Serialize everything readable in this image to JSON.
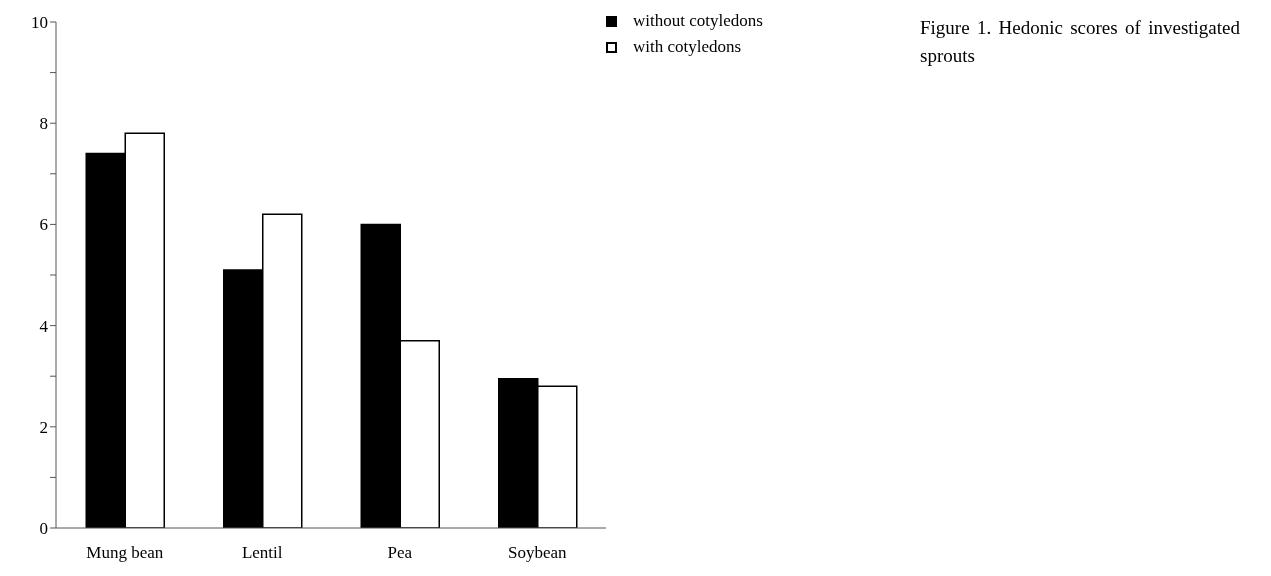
{
  "chart_data": {
    "type": "bar",
    "title": "Figure 1. Hedonic scores of investigated sprouts",
    "categories": [
      "Mung bean",
      "Lentil",
      "Pea",
      "Soybean"
    ],
    "series": [
      {
        "name": "without cotyledons",
        "color": "#000000",
        "values": [
          7.4,
          5.1,
          6.0,
          2.95
        ]
      },
      {
        "name": "with cotyledons",
        "color": "#ffffff",
        "values": [
          7.8,
          6.2,
          3.7,
          2.8
        ]
      }
    ],
    "ylim": [
      0,
      10
    ],
    "yticks": [
      0,
      {
        "value": 1,
        "label": null
      },
      2,
      {
        "value": 3,
        "label": null
      },
      4,
      {
        "value": 5,
        "label": null
      },
      6,
      {
        "value": 7,
        "label": null
      },
      8,
      {
        "value": 9,
        "label": null
      },
      10
    ],
    "grid": false,
    "legend": "top right"
  }
}
